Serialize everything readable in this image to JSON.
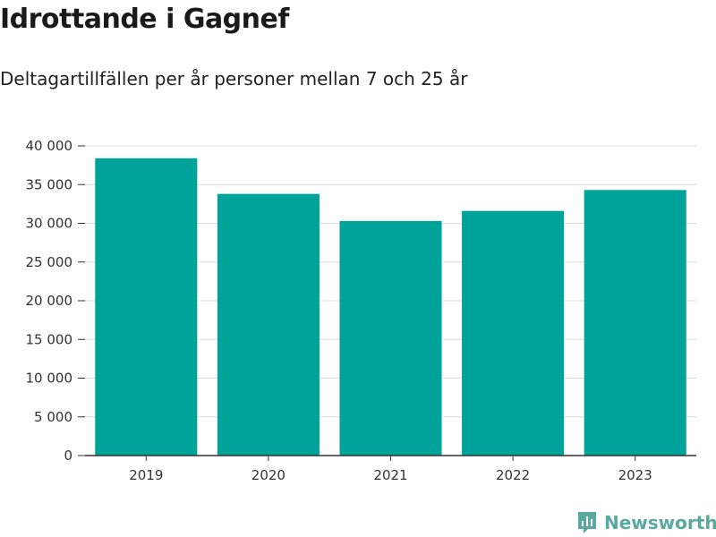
{
  "title": "Idrottande i Gagnef",
  "subtitle": "Deltagartillfällen per år personer mellan 7 och 25 år",
  "brand": {
    "name": "Newsworthy",
    "icon": "newsworthy-logo-icon",
    "color": "#5aa9a0"
  },
  "colors": {
    "bar": "#00a39a",
    "grid": "#dddddd",
    "axis": "#333333"
  },
  "chart_data": {
    "type": "bar",
    "categories": [
      "2019",
      "2020",
      "2021",
      "2022",
      "2023"
    ],
    "values": [
      38400,
      33800,
      30300,
      31600,
      34300
    ],
    "ylim": [
      0,
      40000
    ],
    "yticks": [
      0,
      5000,
      10000,
      15000,
      20000,
      25000,
      30000,
      35000,
      40000
    ],
    "ytick_labels": [
      "0",
      "5 000",
      "10 000",
      "15 000",
      "20 000",
      "25 000",
      "30 000",
      "35 000",
      "40 000"
    ],
    "xlabel": "",
    "ylabel": "",
    "grid": true
  }
}
